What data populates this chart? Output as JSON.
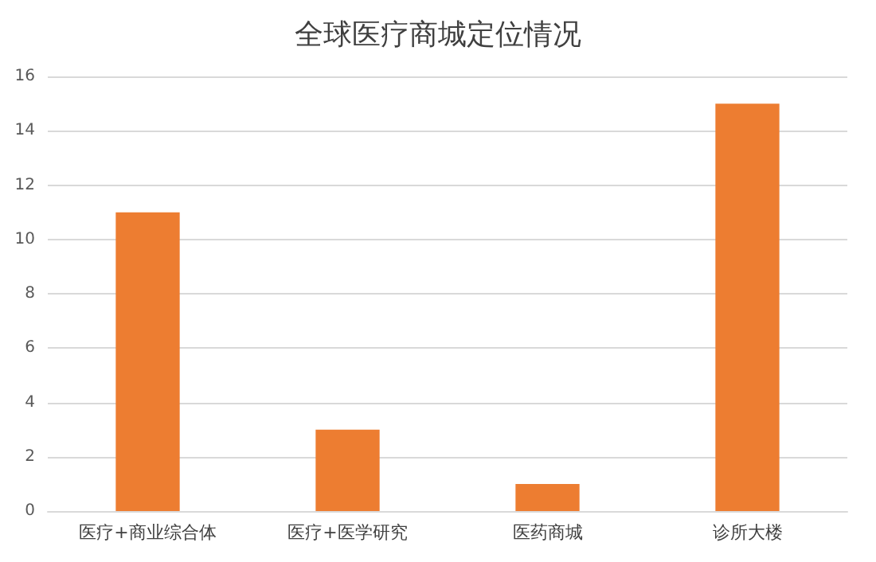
{
  "chart_data": {
    "type": "bar",
    "title": "全球医疗商城定位情况",
    "categories": [
      "医疗+商业综合体",
      "医疗+医学研究",
      "医药商城",
      "诊所大楼"
    ],
    "values": [
      11,
      3,
      1,
      15
    ],
    "color": "#ed7d31",
    "ylim": [
      0,
      16
    ],
    "yticks": [
      0,
      2,
      4,
      6,
      8,
      10,
      12,
      14,
      16
    ],
    "grid": "y"
  }
}
